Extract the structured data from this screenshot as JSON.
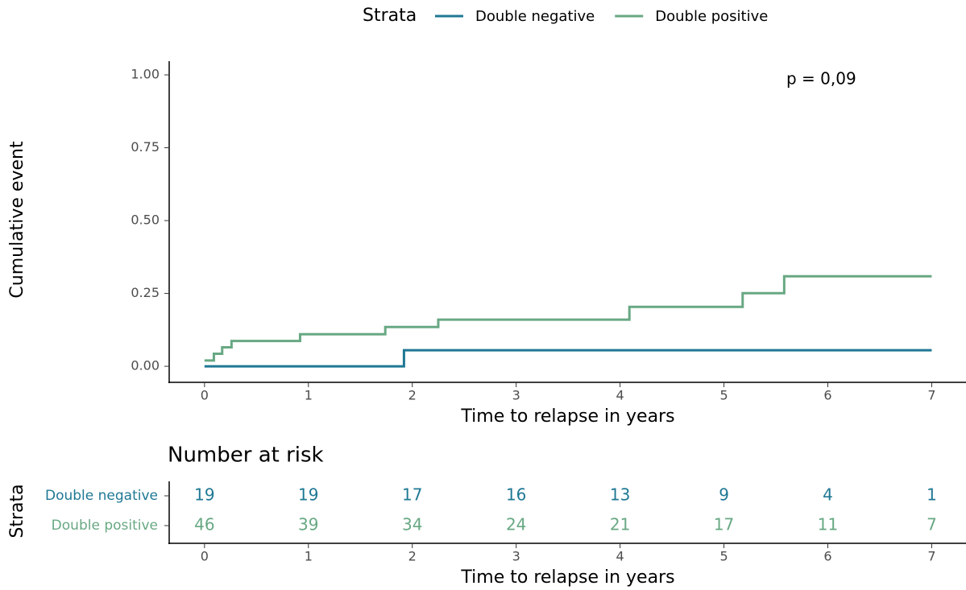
{
  "chart_data": [
    {
      "type": "step",
      "legend_title": "Strata",
      "legend": "top",
      "xlabel": "Time to relapse in years",
      "ylabel": "Cumulative event",
      "annotation": "p = 0,09",
      "xlim": [
        -0.34,
        7.33
      ],
      "ylim": [
        -0.055,
        1.047
      ],
      "xticks": [
        0,
        1,
        2,
        3,
        4,
        5,
        6,
        7
      ],
      "yticks": [
        {
          "value": 0,
          "label": "0.00"
        },
        {
          "value": 0.25,
          "label": "0.25"
        },
        {
          "value": 0.5,
          "label": "0.50"
        },
        {
          "value": 0.75,
          "label": "0.75"
        },
        {
          "value": 1,
          "label": "1.00"
        }
      ],
      "series": [
        {
          "name": "Double negative",
          "color": "#1f7894",
          "x": [
            0,
            1.92,
            7
          ],
          "values": [
            0,
            0.055,
            0.055
          ]
        },
        {
          "name": "Double positive",
          "color": "#68a883",
          "x": [
            0,
            0.09,
            0.17,
            0.26,
            0.92,
            1.74,
            2.25,
            4.09,
            5.18,
            5.58,
            7
          ],
          "values": [
            0.02,
            0.043,
            0.065,
            0.087,
            0.11,
            0.135,
            0.16,
            0.204,
            0.251,
            0.309,
            0.309
          ]
        }
      ]
    },
    {
      "type": "table",
      "title": "Number at risk",
      "ylabel": "Strata",
      "xlabel": "Time to relapse in years",
      "xlim": [
        -0.34,
        7.33
      ],
      "xticks": [
        0,
        1,
        2,
        3,
        4,
        5,
        6,
        7
      ],
      "series": [
        {
          "name": "Double negative",
          "color": "#1f7894",
          "values": [
            19,
            19,
            17,
            16,
            13,
            9,
            4,
            1
          ]
        },
        {
          "name": "Double positive",
          "color": "#68a883",
          "values": [
            46,
            39,
            34,
            24,
            21,
            17,
            11,
            7
          ]
        }
      ]
    }
  ]
}
